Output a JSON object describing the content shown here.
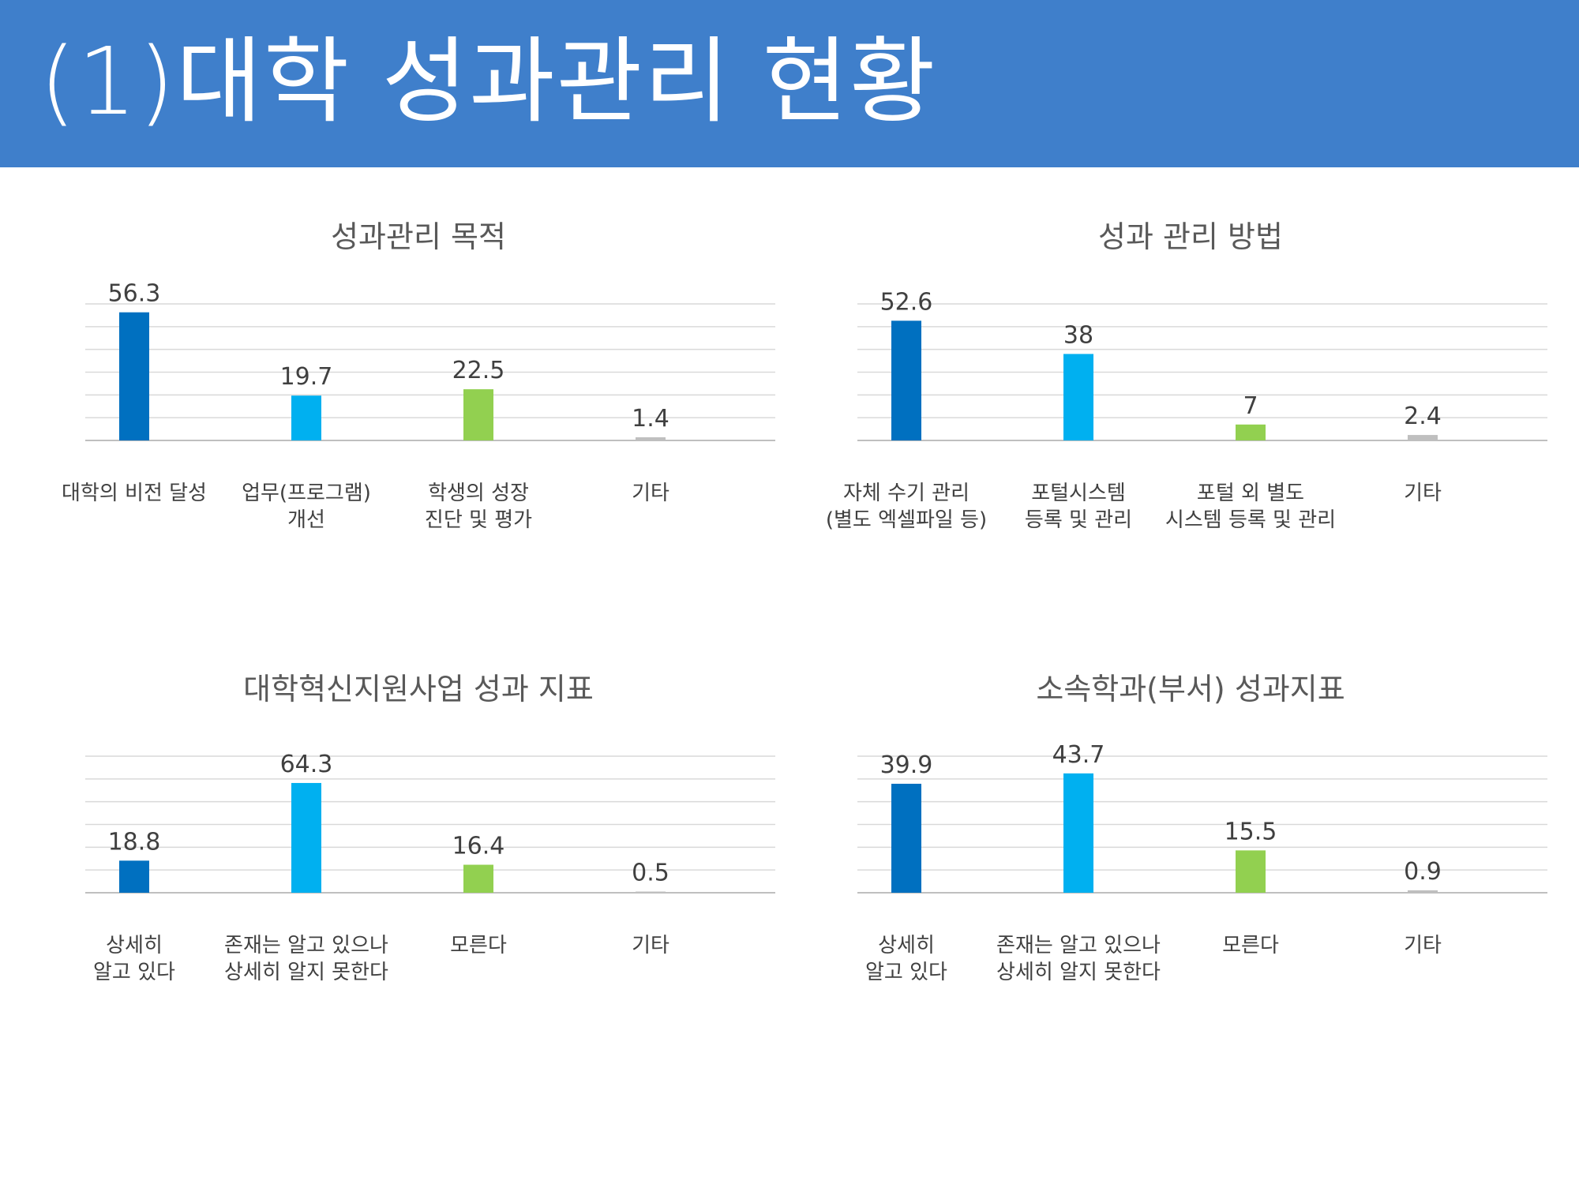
{
  "header": {
    "title": "(1)대학 성과관리 현황"
  },
  "colors": {
    "banner": "#3f7fcb",
    "series": [
      "#0070c0",
      "#00b0f0",
      "#92d050",
      "#bfbfbf"
    ],
    "gridline": "#d9d9d9"
  },
  "chart_data": [
    {
      "type": "bar",
      "title": "성과관리 목적",
      "categories": [
        "대학의 비전 달성",
        "업무(프로그램)\n개선",
        "학생의 성장\n진단 및 평가",
        "기타"
      ],
      "values": [
        56.3,
        19.7,
        22.5,
        1.4
      ],
      "value_labels": [
        "56.3",
        "19.7",
        "22.5",
        "1.4"
      ],
      "ylim": [
        0,
        60
      ],
      "grid": true
    },
    {
      "type": "bar",
      "title": "성과 관리 방법",
      "categories": [
        "자체 수기 관리\n(별도 엑셀파일 등)",
        "포털시스템\n등록 및 관리",
        "포털 외 별도\n시스템 등록 및 관리",
        "기타"
      ],
      "values": [
        52.6,
        38,
        7,
        2.4
      ],
      "value_labels": [
        "52.6",
        "38",
        "7",
        "2.4"
      ],
      "ylim": [
        0,
        60
      ],
      "grid": true
    },
    {
      "type": "bar",
      "title": "대학혁신지원사업 성과 지표",
      "categories": [
        "상세히\n알고 있다",
        "존재는 알고 있으나\n상세히 알지 못한다",
        "모른다",
        "기타"
      ],
      "values": [
        18.8,
        64.3,
        16.4,
        0.5
      ],
      "value_labels": [
        "18.8",
        "64.3",
        "16.4",
        "0.5"
      ],
      "ylim": [
        0,
        80
      ],
      "grid": true
    },
    {
      "type": "bar",
      "title": "소속학과(부서) 성과지표",
      "categories": [
        "상세히\n알고 있다",
        "존재는 알고 있으나\n상세히 알지 못한다",
        "모른다",
        "기타"
      ],
      "values": [
        39.9,
        43.7,
        15.5,
        0.9
      ],
      "value_labels": [
        "39.9",
        "43.7",
        "15.5",
        "0.9"
      ],
      "ylim": [
        0,
        50
      ],
      "grid": true
    }
  ]
}
